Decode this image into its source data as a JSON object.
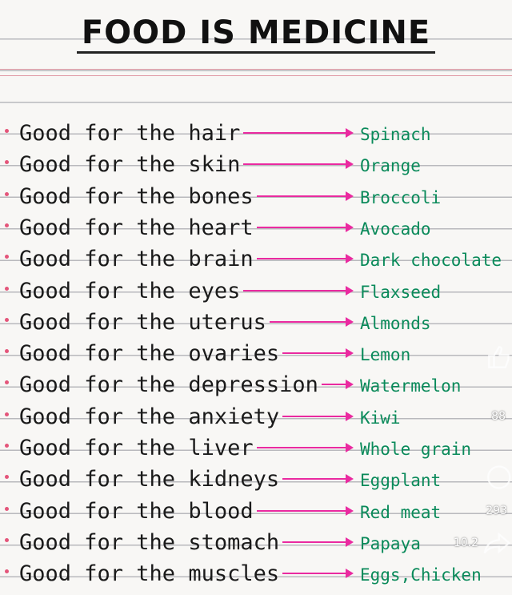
{
  "title": "FOOD IS MEDICINE",
  "rows": [
    {
      "phrase": "Good for the hair",
      "food": "Spinach"
    },
    {
      "phrase": "Good for the skin",
      "food": "Orange"
    },
    {
      "phrase": "Good for the bones",
      "food": "Broccoli"
    },
    {
      "phrase": "Good for the heart",
      "food": "Avocado"
    },
    {
      "phrase": "Good for the brain",
      "food": "Dark chocolate"
    },
    {
      "phrase": "Good for the eyes",
      "food": "Flaxseed"
    },
    {
      "phrase": "Good for the uterus",
      "food": "Almonds"
    },
    {
      "phrase": "Good for the ovaries",
      "food": "Lemon"
    },
    {
      "phrase": "Good for the depression",
      "food": "Watermelon"
    },
    {
      "phrase": "Good for the anxiety",
      "food": "Kiwi"
    },
    {
      "phrase": "Good for the liver",
      "food": "Whole grain"
    },
    {
      "phrase": "Good for the kidneys",
      "food": "Eggplant"
    },
    {
      "phrase": "Good for the blood",
      "food": "Red meat"
    },
    {
      "phrase": "Good for the stomach",
      "food": "Papaya"
    },
    {
      "phrase": "Good for the muscles",
      "food": "Eggs,Chicken"
    }
  ],
  "overlay": {
    "like_icon": "thumbs-up-icon",
    "like_count": "88",
    "comment_icon": "comment-icon",
    "comment_count": "293",
    "share_icon": "share-icon",
    "share_count": "10.2"
  },
  "colors": {
    "ink": "#1a1a1a",
    "arrow": "#ea2aa0",
    "food": "#0a8a5a"
  }
}
